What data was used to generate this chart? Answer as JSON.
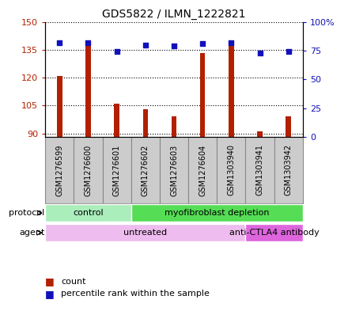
{
  "title": "GDS5822 / ILMN_1222821",
  "samples": [
    "GSM1276599",
    "GSM1276600",
    "GSM1276601",
    "GSM1276602",
    "GSM1276603",
    "GSM1276604",
    "GSM1303940",
    "GSM1303941",
    "GSM1303942"
  ],
  "counts": [
    121,
    137,
    106,
    103,
    99,
    133,
    138,
    91,
    99
  ],
  "percentiles": [
    82,
    82,
    74,
    80,
    79,
    81,
    82,
    73,
    74
  ],
  "ylim_left": [
    88,
    150
  ],
  "ylim_right": [
    0,
    100
  ],
  "yticks_left": [
    90,
    105,
    120,
    135,
    150
  ],
  "yticks_right": [
    0,
    25,
    50,
    75,
    100
  ],
  "ytick_labels_left": [
    "90",
    "105",
    "120",
    "135",
    "150"
  ],
  "ytick_labels_right": [
    "0",
    "25",
    "50",
    "75",
    "100%"
  ],
  "bar_color": "#B22000",
  "dot_color": "#1111BB",
  "bar_bottom": 88,
  "bar_width": 0.18,
  "protocol_groups": [
    {
      "label": "control",
      "start": 0,
      "end": 3,
      "color": "#AAEEBB"
    },
    {
      "label": "myofibroblast depletion",
      "start": 3,
      "end": 9,
      "color": "#55DD55"
    }
  ],
  "agent_groups": [
    {
      "label": "untreated",
      "start": 0,
      "end": 7,
      "color": "#EEBCEE"
    },
    {
      "label": "anti-CTLA4 antibody",
      "start": 7,
      "end": 9,
      "color": "#DD66DD"
    }
  ],
  "protocol_label": "protocol",
  "agent_label": "agent",
  "legend_count_label": "count",
  "legend_pct_label": "percentile rank within the sample",
  "sample_box_color": "#CCCCCC",
  "sample_box_edge": "#888888",
  "grid_color": "black",
  "grid_style": "dotted",
  "grid_lw": 0.8,
  "title_fontsize": 10,
  "axis_label_fontsize": 8,
  "sample_fontsize": 7
}
